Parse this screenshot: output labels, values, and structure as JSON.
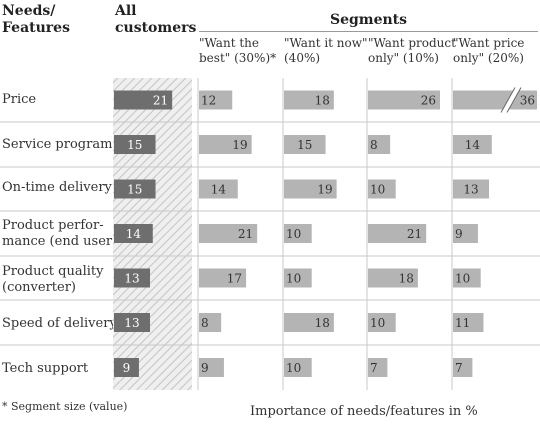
{
  "colors": {
    "all_bar": "#6e6e6e",
    "segment_bar": "#b4b4b4",
    "grid": "#c8c8c8",
    "hatch_bg": "#e6e6e6"
  },
  "header": {
    "needs": [
      "Needs/",
      "Features"
    ],
    "all_customers": [
      "All",
      "customers"
    ],
    "segments_title": "Segments"
  },
  "segments": [
    {
      "line1": "\"Want the",
      "line2": "best\" (30%)*"
    },
    {
      "line1": "\"Want it now\"",
      "line2": "(40%)"
    },
    {
      "line1": "\"Want product",
      "line2": "only\" (10%)"
    },
    {
      "line1": "\"Want price",
      "line2": "only\" (20%)"
    }
  ],
  "rows": [
    {
      "label": [
        "Price"
      ]
    },
    {
      "label": [
        "Service programs"
      ]
    },
    {
      "label": [
        "On-time delivery"
      ]
    },
    {
      "label": [
        "Product perfor-",
        "mance (end user)"
      ]
    },
    {
      "label": [
        "Product quality",
        "(converter)"
      ]
    },
    {
      "label": [
        "Speed of delivery"
      ]
    },
    {
      "label": [
        "Tech support"
      ]
    }
  ],
  "chart_data": {
    "type": "bar",
    "categories": [
      "Price",
      "Service programs",
      "On-time delivery",
      "Product performance (end user)",
      "Product quality (converter)",
      "Speed of delivery",
      "Tech support"
    ],
    "series": [
      {
        "name": "All customers",
        "values": [
          21,
          15,
          15,
          14,
          13,
          13,
          9
        ]
      },
      {
        "name": "\"Want the best\" (30%)",
        "values": [
          12,
          19,
          14,
          21,
          17,
          8,
          9
        ]
      },
      {
        "name": "\"Want it now\" (40%)",
        "values": [
          18,
          15,
          19,
          10,
          10,
          18,
          10
        ]
      },
      {
        "name": "\"Want product only\" (10%)",
        "values": [
          26,
          8,
          10,
          21,
          18,
          10,
          7
        ]
      },
      {
        "name": "\"Want price only\" (20%)",
        "values": [
          36,
          14,
          13,
          9,
          10,
          11,
          7
        ]
      }
    ],
    "xlabel": "Importance of needs/features in %",
    "broken_axis_value": 36
  },
  "footnote": "* Segment size (value)"
}
